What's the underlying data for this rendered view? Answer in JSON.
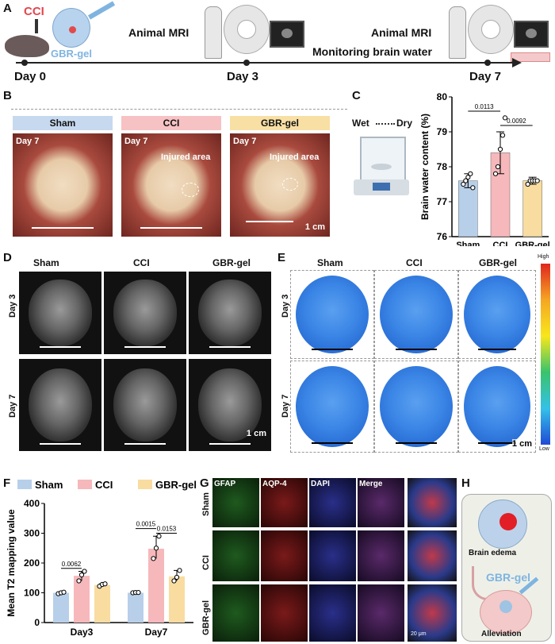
{
  "panels": {
    "a": "A",
    "b": "B",
    "c": "C",
    "d": "D",
    "e": "E",
    "f": "F",
    "g": "G",
    "h": "H"
  },
  "panelA": {
    "cci": "CCI",
    "gbr_gel": "GBR-gel",
    "mri1": "Animal MRI",
    "mri2": "Animal MRI",
    "monitor": "Monitoring brain water",
    "day0": "Day 0",
    "day3": "Day 3",
    "day7": "Day 7"
  },
  "panelB": {
    "groups": [
      "Sham",
      "CCI",
      "GBR-gel"
    ],
    "day": "Day 7",
    "injured": "Injured area",
    "scale": "1 cm",
    "colors": [
      "#c7d9ef",
      "#f6c2c4",
      "#f8dfa4"
    ]
  },
  "panelC": {
    "wet": "Wet",
    "dry": "Dry"
  },
  "panelD": {
    "groups": [
      "Sham",
      "CCI",
      "GBR-gel"
    ],
    "rows": [
      "Day 3",
      "Day 7"
    ],
    "scale": "1 cm"
  },
  "panelE": {
    "groups": [
      "Sham",
      "CCI",
      "GBR-gel"
    ],
    "rows": [
      "Day 3",
      "Day 7"
    ],
    "scale": "1 cm",
    "high": "High",
    "low": "Low"
  },
  "panelG": {
    "channels": [
      "GFAP",
      "AQP-4",
      "DAPI",
      "Merge"
    ],
    "rows": [
      "Sham",
      "CCI",
      "GBR-gel"
    ],
    "scale": "20 μm"
  },
  "panelH": {
    "edema": "Brain edema",
    "gbr": "GBR-gel",
    "alleviation": "Alleviation"
  },
  "chart_data": [
    {
      "type": "bar",
      "categories": [
        "Sham",
        "CCI",
        "GBR-gel"
      ],
      "values": [
        77.6,
        78.4,
        77.6
      ],
      "errors": [
        0.2,
        0.6,
        0.1
      ],
      "points": [
        [
          77.5,
          77.6,
          77.7,
          77.8,
          77.4
        ],
        [
          77.8,
          78.0,
          78.5,
          78.9,
          79.4
        ],
        [
          77.5,
          77.6,
          77.6,
          77.6,
          77.6
        ]
      ],
      "ylabel": "Brain water content (%)",
      "ylim": [
        76,
        80
      ],
      "yticks": [
        76,
        77,
        78,
        79,
        80
      ],
      "colors": [
        "#b8cfea",
        "#f6b8bb",
        "#f8dca0"
      ],
      "annotations": [
        {
          "pair": [
            "Sham",
            "CCI"
          ],
          "text": "0.0113"
        },
        {
          "pair": [
            "CCI",
            "GBR-gel"
          ],
          "text": "0.0092"
        }
      ]
    },
    {
      "type": "bar",
      "categories": [
        "Day3",
        "Day7"
      ],
      "series": [
        {
          "name": "Sham",
          "values": [
            100,
            100
          ],
          "points": [
            [
              97,
              100,
              102
            ],
            [
              100,
              101,
              101
            ]
          ],
          "color": "#b8cfea"
        },
        {
          "name": "CCI",
          "values": [
            157,
            248
          ],
          "points": [
            [
              140,
              160,
              172
            ],
            [
              215,
              250,
              290
            ]
          ],
          "color": "#f6b8bb"
        },
        {
          "name": "GBR-gel",
          "values": [
            126,
            155
          ],
          "points": [
            [
              122,
              128,
              130
            ],
            [
              140,
              152,
              175
            ]
          ],
          "color": "#f8dca0"
        }
      ],
      "ylabel": "Mean T2 mapping value",
      "ylim": [
        0,
        400
      ],
      "yticks": [
        0,
        100,
        200,
        300,
        400
      ],
      "annotations": [
        {
          "group": "Day3",
          "pair": [
            "Sham",
            "CCI"
          ],
          "text": "0.0062"
        },
        {
          "group": "Day7",
          "pair": [
            "Sham",
            "CCI"
          ],
          "text": "0.0015"
        },
        {
          "group": "Day7",
          "pair": [
            "CCI",
            "GBR-gel"
          ],
          "text": "0.0153"
        }
      ]
    }
  ]
}
